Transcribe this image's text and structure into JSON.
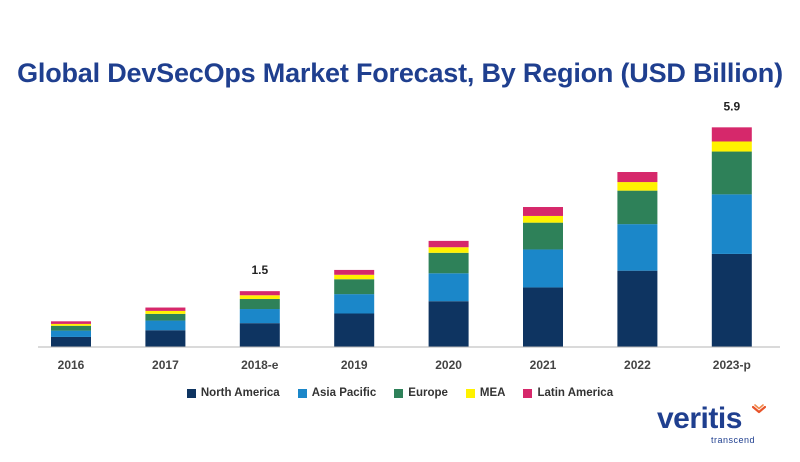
{
  "chart_data": {
    "type": "bar",
    "stacked": true,
    "title": "Global DevSecOps Market Forecast, By Region (USD Billion)",
    "xlabel": "",
    "ylabel": "",
    "ylim": [
      0,
      6.5
    ],
    "grid": false,
    "legend_position": "bottom",
    "categories": [
      "2016",
      "2017",
      "2018-e",
      "2019",
      "2020",
      "2021",
      "2022",
      "2023-p"
    ],
    "series": [
      {
        "name": "North America",
        "color": "#0e3461",
        "values": [
          0.27,
          0.45,
          0.64,
          0.9,
          1.23,
          1.6,
          2.05,
          2.5
        ]
      },
      {
        "name": "Asia Pacific",
        "color": "#1b87c9",
        "values": [
          0.17,
          0.26,
          0.38,
          0.52,
          0.75,
          1.02,
          1.25,
          1.6
        ]
      },
      {
        "name": "Europe",
        "color": "#2e8159",
        "values": [
          0.13,
          0.18,
          0.27,
          0.4,
          0.55,
          0.72,
          0.9,
          1.15
        ]
      },
      {
        "name": "MEA",
        "color": "#fff200",
        "values": [
          0.05,
          0.08,
          0.1,
          0.12,
          0.15,
          0.18,
          0.23,
          0.27
        ]
      },
      {
        "name": "Latin America",
        "color": "#d6286b",
        "values": [
          0.07,
          0.09,
          0.11,
          0.13,
          0.17,
          0.24,
          0.27,
          0.38
        ]
      }
    ],
    "annotations": [
      {
        "category": "2018-e",
        "text": "1.5"
      },
      {
        "category": "2023-p",
        "text": "5.9"
      }
    ]
  },
  "brand": {
    "wordmark": "veritis",
    "tagline": "transcend"
  }
}
